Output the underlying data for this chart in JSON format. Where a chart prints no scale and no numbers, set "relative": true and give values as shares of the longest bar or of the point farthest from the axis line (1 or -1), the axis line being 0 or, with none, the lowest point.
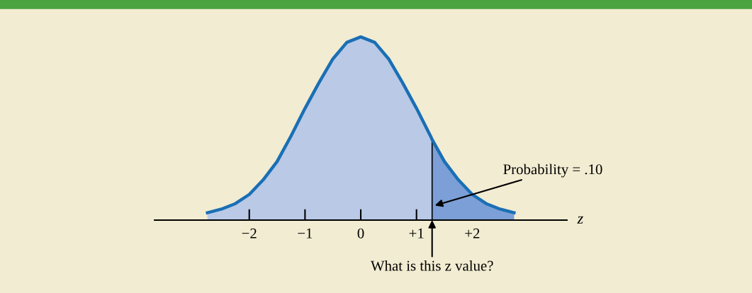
{
  "chart_data": {
    "type": "area",
    "relative": true,
    "xlabel": "z",
    "x": [
      -2.75,
      -2.5,
      -2.25,
      -2.0,
      -1.75,
      -1.5,
      -1.25,
      -1.0,
      -0.75,
      -0.5,
      -0.25,
      0.0,
      0.25,
      0.5,
      0.75,
      1.0,
      1.25,
      1.28,
      1.5,
      1.75,
      2.0,
      2.25,
      2.5,
      2.75
    ],
    "series": [
      {
        "color": "#1a6fb5",
        "values": [
          0.04,
          0.06,
          0.09,
          0.14,
          0.22,
          0.32,
          0.46,
          0.61,
          0.75,
          0.88,
          0.97,
          1.0,
          0.97,
          0.88,
          0.75,
          0.61,
          0.46,
          0.44,
          0.32,
          0.22,
          0.14,
          0.09,
          0.06,
          0.04
        ]
      },
      {
        "color": "#7b9fd6",
        "x": [
          1.28,
          1.5,
          1.75,
          2.0,
          2.25,
          2.5,
          2.75
        ],
        "values": [
          0.44,
          0.32,
          0.22,
          0.14,
          0.09,
          0.06,
          0.04
        ]
      }
    ],
    "xlim": [
      -3.7,
      3.7
    ],
    "xticks": [
      {
        "value": -2,
        "label": "−2"
      },
      {
        "value": -1,
        "label": "−1"
      },
      0,
      {
        "value": 1,
        "label": "+1"
      },
      {
        "value": 2,
        "label": "+2"
      }
    ],
    "ref_lines": [
      {
        "axis": "x",
        "value": 1.28,
        "color": "#000000"
      }
    ],
    "annotations": [
      "Probability = .10",
      {
        "text": "What is this z value?",
        "x": 1.28,
        "y": 0
      }
    ],
    "grid": false,
    "marker": "none",
    "line_style": "solid"
  }
}
